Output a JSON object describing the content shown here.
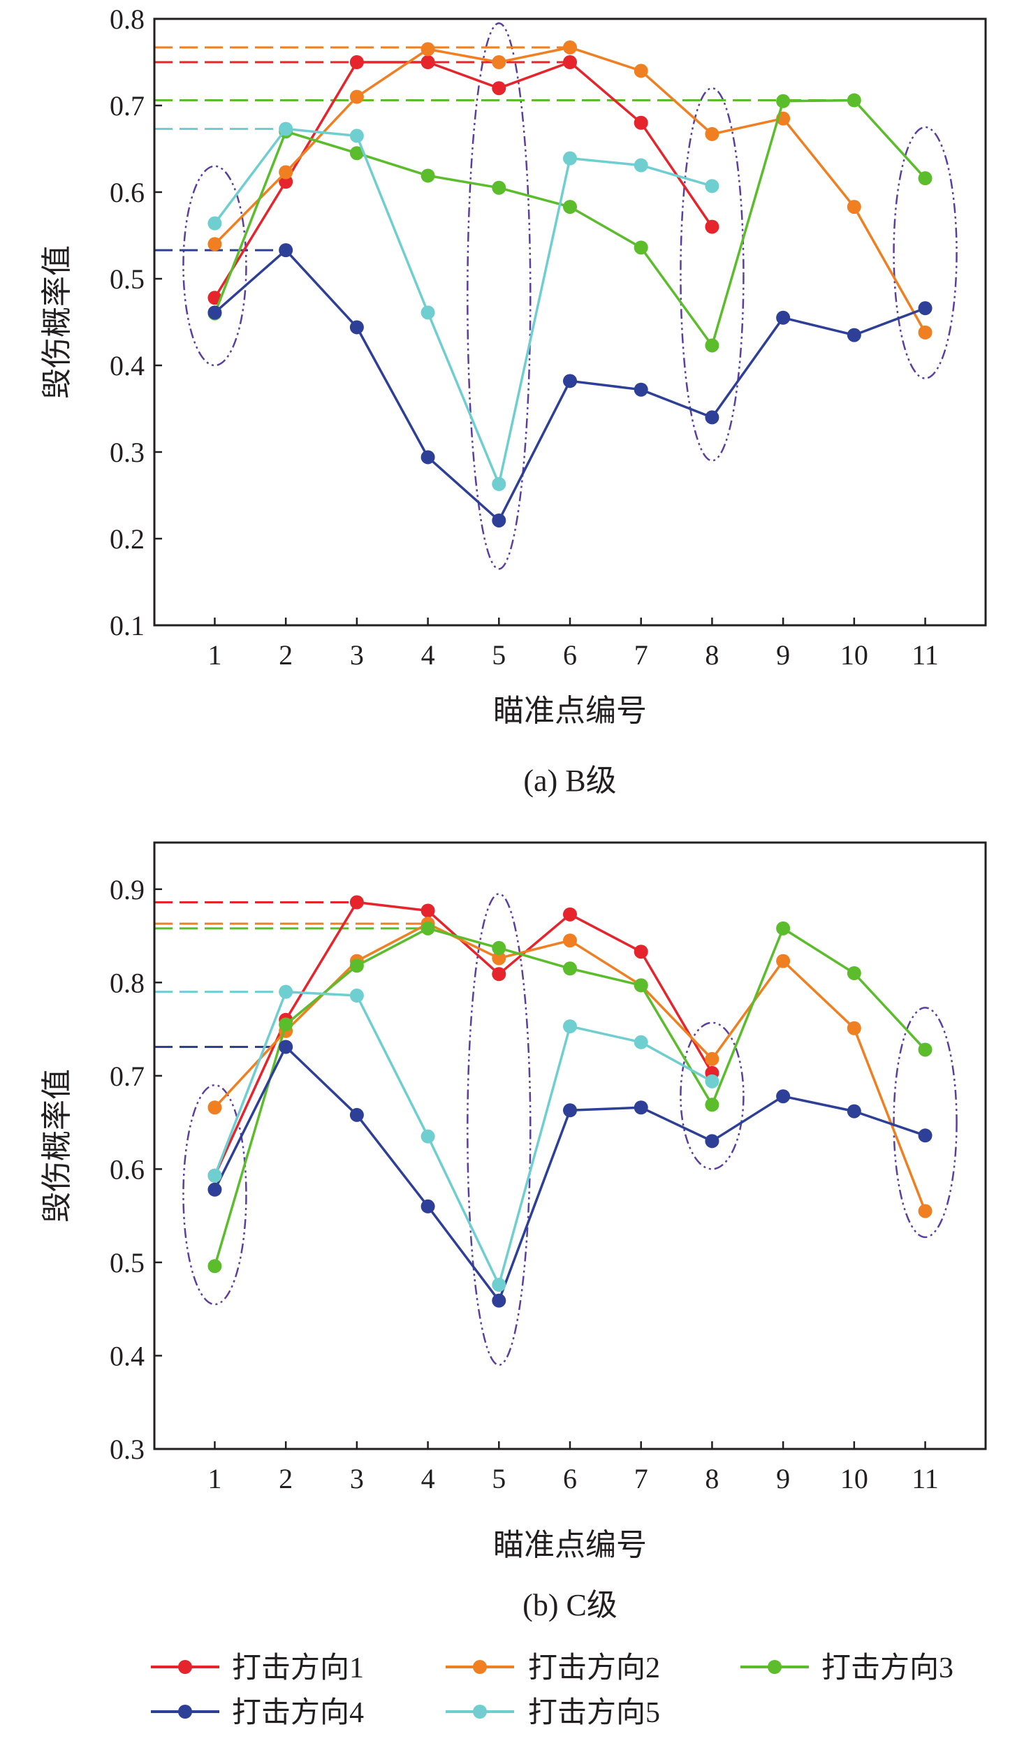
{
  "figure": {
    "legend": [
      {
        "label": "打击方向1",
        "color": "#e5242b"
      },
      {
        "label": "打击方向2",
        "color": "#f07f22"
      },
      {
        "label": "打击方向3",
        "color": "#5bbd2c"
      },
      {
        "label": "打击方向4",
        "color": "#2e3f97"
      },
      {
        "label": "打击方向5",
        "color": "#6fcfd0"
      }
    ]
  },
  "chart_data": [
    {
      "type": "line",
      "caption": "(a) B级",
      "title": "",
      "xlabel": "瞄准点编号",
      "ylabel": "毁伤概率值",
      "x": [
        1,
        2,
        3,
        4,
        5,
        6,
        7,
        8,
        9,
        10,
        11
      ],
      "x_tick_labels": [
        "1",
        "2",
        "3",
        "4",
        "5",
        "6",
        "7",
        "8",
        "9",
        "10",
        "11"
      ],
      "xlim": [
        0.15,
        11.85
      ],
      "ylim": [
        0.1,
        0.8
      ],
      "y_ticks": [
        0.1,
        0.2,
        0.3,
        0.4,
        0.5,
        0.6,
        0.7,
        0.8
      ],
      "y_tick_labels": [
        "0.1",
        "0.2",
        "0.3",
        "0.4",
        "0.5",
        "0.6",
        "0.7",
        "0.8"
      ],
      "grid": false,
      "series": [
        {
          "name": "打击方向1",
          "color": "#e5242b",
          "x": [
            1,
            2,
            3,
            4,
            5,
            6,
            7,
            8
          ],
          "values": [
            0.478,
            0.612,
            0.75,
            0.75,
            0.72,
            0.75,
            0.68,
            0.56
          ]
        },
        {
          "name": "打击方向2",
          "color": "#f07f22",
          "x": [
            1,
            2,
            3,
            4,
            5,
            6,
            7,
            8,
            9,
            10,
            11
          ],
          "values": [
            0.54,
            0.623,
            0.71,
            0.765,
            0.75,
            0.767,
            0.74,
            0.667,
            0.685,
            0.583,
            0.438
          ]
        },
        {
          "name": "打击方向3",
          "color": "#5bbd2c",
          "x": [
            1,
            2,
            3,
            4,
            5,
            6,
            7,
            8,
            9,
            10,
            11
          ],
          "values": [
            0.46,
            0.67,
            0.645,
            0.619,
            0.605,
            0.583,
            0.536,
            0.423,
            0.705,
            0.706,
            0.616
          ]
        },
        {
          "name": "打击方向4",
          "color": "#2e3f97",
          "x": [
            1,
            2,
            3,
            4,
            5,
            6,
            7,
            8,
            9,
            10,
            11
          ],
          "values": [
            0.461,
            0.533,
            0.444,
            0.294,
            0.221,
            0.382,
            0.372,
            0.34,
            0.455,
            0.435,
            0.466
          ]
        },
        {
          "name": "打击方向5",
          "color": "#6fcfd0",
          "x": [
            1,
            2,
            3,
            4,
            5,
            6,
            7,
            8
          ],
          "values": [
            0.564,
            0.673,
            0.665,
            0.461,
            0.263,
            0.639,
            0.631,
            0.607
          ]
        }
      ],
      "reference_lines": [
        {
          "series": "打击方向1",
          "y": 0.75,
          "x_end": 6
        },
        {
          "series": "打击方向2",
          "y": 0.767,
          "x_end": 6
        },
        {
          "series": "打击方向3",
          "y": 0.706,
          "x_end": 10
        },
        {
          "series": "打击方向4",
          "y": 0.533,
          "x_end": 2
        },
        {
          "series": "打击方向5",
          "y": 0.673,
          "x_end": 2
        }
      ],
      "highlight_ellipses": [
        {
          "x": 1,
          "y_range": [
            0.4,
            0.63
          ]
        },
        {
          "x": 5,
          "y_range": [
            0.165,
            0.795
          ]
        },
        {
          "x": 8,
          "y_range": [
            0.29,
            0.72
          ]
        },
        {
          "x": 11,
          "y_range": [
            0.385,
            0.675
          ]
        }
      ]
    },
    {
      "type": "line",
      "caption": "(b) C级",
      "title": "",
      "xlabel": "瞄准点编号",
      "ylabel": "毁伤概率值",
      "x": [
        1,
        2,
        3,
        4,
        5,
        6,
        7,
        8,
        9,
        10,
        11
      ],
      "x_tick_labels": [
        "1",
        "2",
        "3",
        "4",
        "5",
        "6",
        "7",
        "8",
        "9",
        "10",
        "11"
      ],
      "xlim": [
        0.15,
        11.85
      ],
      "ylim": [
        0.3,
        0.95
      ],
      "y_ticks": [
        0.3,
        0.4,
        0.5,
        0.6,
        0.7,
        0.8,
        0.9
      ],
      "y_tick_labels": [
        "0.3",
        "0.4",
        "0.5",
        "0.6",
        "0.7",
        "0.8",
        "0.9"
      ],
      "grid": false,
      "series": [
        {
          "name": "打击方向1",
          "color": "#e5242b",
          "x": [
            1,
            2,
            3,
            4,
            5,
            6,
            7,
            8
          ],
          "values": [
            0.593,
            0.76,
            0.886,
            0.877,
            0.809,
            0.873,
            0.833,
            0.703
          ]
        },
        {
          "name": "打击方向2",
          "color": "#f07f22",
          "x": [
            1,
            2,
            3,
            4,
            5,
            6,
            7,
            8,
            9,
            10,
            11
          ],
          "values": [
            0.666,
            0.748,
            0.823,
            0.863,
            0.826,
            0.845,
            0.797,
            0.718,
            0.823,
            0.751,
            0.555
          ]
        },
        {
          "name": "打击方向3",
          "color": "#5bbd2c",
          "x": [
            1,
            2,
            3,
            4,
            5,
            6,
            7,
            8,
            9,
            10,
            11
          ],
          "values": [
            0.496,
            0.755,
            0.818,
            0.858,
            0.837,
            0.815,
            0.797,
            0.669,
            0.858,
            0.81,
            0.728
          ]
        },
        {
          "name": "打击方向4",
          "color": "#2e3f97",
          "x": [
            1,
            2,
            3,
            4,
            5,
            6,
            7,
            8,
            9,
            10,
            11
          ],
          "values": [
            0.578,
            0.731,
            0.658,
            0.56,
            0.459,
            0.663,
            0.666,
            0.63,
            0.678,
            0.662,
            0.636
          ]
        },
        {
          "name": "打击方向5",
          "color": "#6fcfd0",
          "x": [
            1,
            2,
            3,
            4,
            5,
            6,
            7,
            8
          ],
          "values": [
            0.593,
            0.79,
            0.786,
            0.635,
            0.476,
            0.753,
            0.736,
            0.694
          ]
        }
      ],
      "reference_lines": [
        {
          "series": "打击方向1",
          "y": 0.886,
          "x_end": 3
        },
        {
          "series": "打击方向2",
          "y": 0.863,
          "x_end": 4
        },
        {
          "series": "打击方向3",
          "y": 0.858,
          "x_end": 4
        },
        {
          "series": "打击方向4",
          "y": 0.731,
          "x_end": 2
        },
        {
          "series": "打击方向5",
          "y": 0.79,
          "x_end": 2
        }
      ],
      "highlight_ellipses": [
        {
          "x": 1,
          "y_range": [
            0.455,
            0.69
          ]
        },
        {
          "x": 5,
          "y_range": [
            0.39,
            0.895
          ]
        },
        {
          "x": 8,
          "y_range": [
            0.6,
            0.757
          ]
        },
        {
          "x": 11,
          "y_range": [
            0.527,
            0.773
          ]
        }
      ]
    }
  ]
}
